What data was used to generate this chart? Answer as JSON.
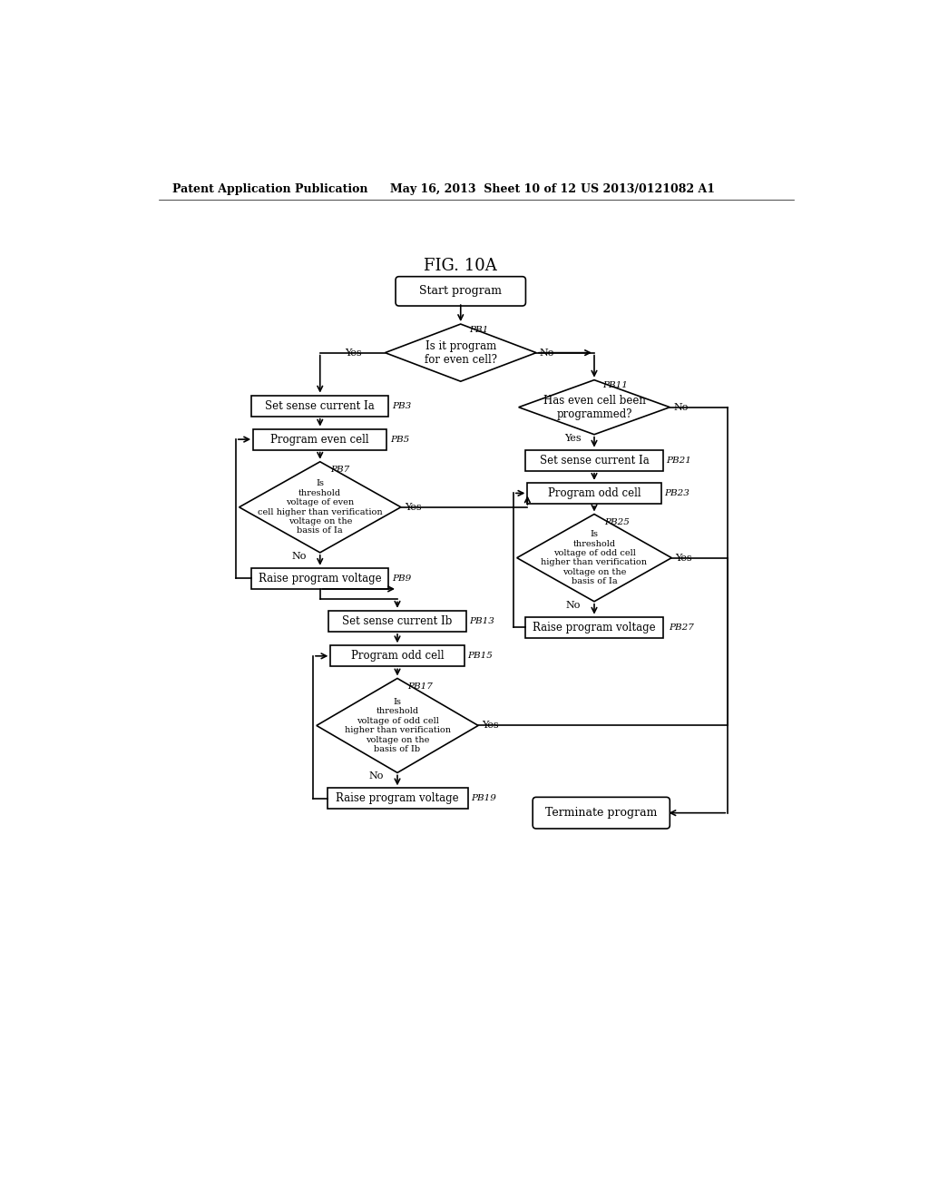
{
  "title": "FIG. 10A",
  "header_left": "Patent Application Publication",
  "header_mid": "May 16, 2013  Sheet 10 of 12",
  "header_right": "US 2013/0121082 A1",
  "background": "#ffffff"
}
